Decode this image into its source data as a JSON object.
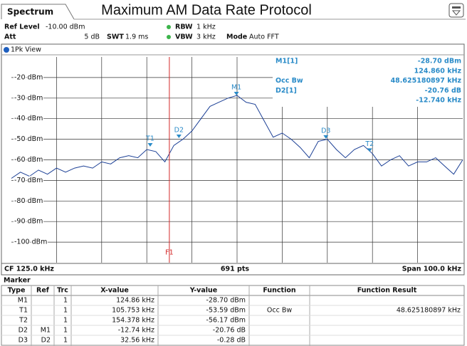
{
  "header": {
    "tab": "Spectrum",
    "title": "Maximum AM Data Rate Protocol"
  },
  "settings": [
    {
      "label": "Ref Level",
      "value": "-10.00 dBm"
    },
    {
      "label": "Att",
      "value": "5 dB"
    },
    {
      "label": "SWT",
      "value": "1.9 ms"
    },
    {
      "label": "RBW",
      "value": "1 kHz"
    },
    {
      "label": "VBW",
      "value": "3 kHz"
    },
    {
      "label": "Mode",
      "value": "Auto FFT"
    }
  ],
  "view": "1Pk View",
  "chart_data": {
    "type": "line",
    "color": "#1b3f95",
    "xlim": [
      75,
      175
    ],
    "ylim": [
      -110,
      -10
    ],
    "yticks": [
      {
        "value": -20,
        "label": "-20 dBm"
      },
      {
        "value": -30,
        "label": "-30 dBm"
      },
      {
        "value": -40,
        "label": "-40 dBm"
      },
      {
        "value": -50,
        "label": "-50 dBm"
      },
      {
        "value": -60,
        "label": "-60 dBm"
      },
      {
        "value": -70,
        "label": "-70 dBm"
      },
      {
        "value": -80,
        "label": "-80 dBm"
      },
      {
        "value": -90,
        "label": "-90 dBm"
      },
      {
        "value": -100,
        "label": "-100 dBm"
      }
    ],
    "xgrid": [
      85,
      95,
      105,
      115,
      125,
      135,
      145,
      155,
      165
    ],
    "grid": true,
    "x": [
      75,
      77,
      79,
      81,
      83,
      85,
      87,
      89,
      91,
      93,
      95,
      97,
      99,
      101,
      103,
      105,
      107,
      109,
      111,
      113,
      115,
      117,
      119,
      121,
      123,
      125,
      127,
      129,
      131,
      133,
      135,
      137,
      139,
      141,
      143,
      145,
      147,
      149,
      151,
      153,
      155,
      157,
      159,
      161,
      163,
      165,
      167,
      169,
      171,
      173,
      175
    ],
    "values": [
      -69,
      -66,
      -68,
      -65,
      -67,
      -64,
      -66,
      -64,
      -63,
      -64,
      -61,
      -62,
      -59,
      -58,
      -59,
      -55,
      -56,
      -61,
      -53,
      -50,
      -46,
      -40,
      -34,
      -32,
      -30,
      -28.7,
      -32,
      -33,
      -41,
      -49,
      -47,
      -50,
      -54,
      -59,
      -51,
      -50,
      -55,
      -59,
      -55,
      -53,
      -57,
      -63,
      -60,
      -58,
      -63,
      -61,
      -61,
      -59,
      -63,
      -67,
      -60
    ],
    "markers": [
      {
        "label": "M1",
        "x": 124.86,
        "y": -28.7
      },
      {
        "label": "T1",
        "x": 105.753,
        "y": -53.59
      },
      {
        "label": "T2",
        "x": 154.378,
        "y": -56.17
      },
      {
        "label": "D2",
        "x": 112.12,
        "y": -49.46
      },
      {
        "label": "D3",
        "x": 144.68,
        "y": -49.74
      }
    ],
    "marker_color": "#2a8bc8",
    "lines": [
      {
        "label": "F1",
        "x": 110,
        "color": "#d42a2a"
      }
    ],
    "marker_info": [
      {
        "label": "M1[1]",
        "value": "-28.70 dBm"
      },
      {
        "value": "124.860 kHz"
      },
      {
        "label": "Occ Bw",
        "value": "48.625180897 kHz"
      },
      {
        "label": "D2[1]",
        "value": "-20.76 dB"
      },
      {
        "value": "-12.740 kHz"
      }
    ]
  },
  "footer": {
    "left": "CF 125.0 kHz",
    "center": "691 pts",
    "right": "Span 100.0 kHz"
  },
  "table": {
    "title": "Marker",
    "header": [
      "Type",
      "Ref",
      "Trc",
      "X-value",
      "Y-value",
      "Function",
      "Function Result"
    ],
    "rows": [
      [
        "M1",
        null,
        "1",
        "124.86 kHz",
        "-28.70 dBm",
        null,
        null
      ],
      [
        "T1",
        null,
        "1",
        "105.753 kHz",
        "-53.59 dBm",
        "Occ Bw",
        "48.625180897 kHz"
      ],
      [
        "T2",
        null,
        "1",
        "154.378 kHz",
        "-56.17 dBm",
        null,
        null
      ],
      [
        "D2",
        "M1",
        "1",
        "-12.74 kHz",
        "-20.76 dB",
        null,
        null
      ],
      [
        "D3",
        "D2",
        "1",
        "32.56 kHz",
        "-0.28 dB",
        null,
        null
      ]
    ]
  }
}
